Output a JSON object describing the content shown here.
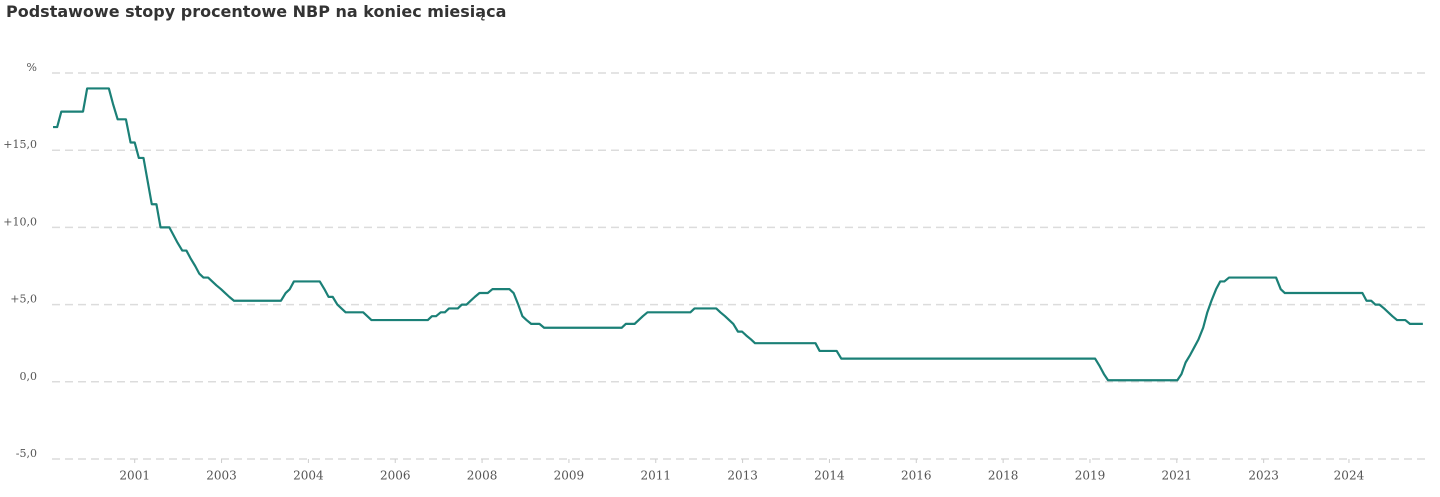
{
  "chart_data": {
    "type": "line",
    "title": "Podstawowe stopy procentowe NBP na koniec miesiąca",
    "color": "#1b8077",
    "grid": true,
    "xlim": [
      1999.9,
      2026.5
    ],
    "xticks": [
      {
        "value": 2001.5,
        "label": "2001"
      },
      {
        "value": 2003.18,
        "label": "2003"
      },
      {
        "value": 2004.86,
        "label": "2004"
      },
      {
        "value": 2006.54,
        "label": "2006"
      },
      {
        "value": 2008.22,
        "label": "2008"
      },
      {
        "value": 2009.9,
        "label": "2009"
      },
      {
        "value": 2011.58,
        "label": "2011"
      },
      {
        "value": 2013.26,
        "label": "2013"
      },
      {
        "value": 2014.94,
        "label": "2014"
      },
      {
        "value": 2016.62,
        "label": "2016"
      },
      {
        "value": 2018.3,
        "label": "2018"
      },
      {
        "value": 2019.98,
        "label": "2019"
      },
      {
        "value": 2021.66,
        "label": "2021"
      },
      {
        "value": 2023.34,
        "label": "2023"
      },
      {
        "value": 2024.99,
        "label": "2024"
      }
    ],
    "ylim": [
      -5,
      20
    ],
    "yticks": [
      {
        "value": -5,
        "label": "-5,0"
      },
      {
        "value": 0,
        "label": "0,0"
      },
      {
        "value": 5,
        "label": "+5,0"
      },
      {
        "value": 10,
        "label": "+10,0"
      },
      {
        "value": 15,
        "label": "+15,0"
      },
      {
        "value": 20,
        "label": "%"
      }
    ],
    "x": [
      1999.92,
      2000.0,
      2000.08,
      2000.5,
      2000.58,
      2001.0,
      2001.08,
      2001.17,
      2001.33,
      2001.42,
      2001.5,
      2001.58,
      2001.67,
      2001.75,
      2001.83,
      2001.92,
      2002.0,
      2002.17,
      2002.25,
      2002.33,
      2002.42,
      2002.5,
      2002.58,
      2002.67,
      2002.75,
      2002.83,
      2002.92,
      2003.0,
      2003.08,
      2003.17,
      2003.25,
      2003.33,
      2003.42,
      2004.33,
      2004.42,
      2004.5,
      2004.58,
      2005.08,
      2005.17,
      2005.25,
      2005.33,
      2005.42,
      2005.5,
      2005.58,
      2005.92,
      2006.0,
      2006.08,
      2007.17,
      2007.25,
      2007.33,
      2007.42,
      2007.5,
      2007.58,
      2007.75,
      2007.83,
      2007.92,
      2008.0,
      2008.08,
      2008.17,
      2008.33,
      2008.42,
      2008.75,
      2008.83,
      2008.92,
      2009.0,
      2009.08,
      2009.17,
      2009.33,
      2009.42,
      2010.92,
      2011.0,
      2011.17,
      2011.25,
      2011.33,
      2011.42,
      2012.25,
      2012.33,
      2012.75,
      2012.83,
      2012.92,
      2013.0,
      2013.08,
      2013.17,
      2013.25,
      2013.33,
      2013.42,
      2013.5,
      2014.67,
      2014.75,
      2015.08,
      2015.17,
      2020.08,
      2020.17,
      2020.25,
      2020.33,
      2021.67,
      2021.75,
      2021.83,
      2021.92,
      2022.0,
      2022.08,
      2022.17,
      2022.25,
      2022.33,
      2022.42,
      2022.5,
      2022.58,
      2022.67,
      2023.58,
      2023.67,
      2023.75,
      2025.25,
      2025.33,
      2025.42,
      2025.5,
      2025.58,
      2025.67,
      2025.75,
      2025.83,
      2025.92,
      2026.08,
      2026.17,
      2026.42
    ],
    "values": [
      16.5,
      16.5,
      17.5,
      17.5,
      19,
      19,
      18,
      17,
      17,
      15.5,
      15.5,
      14.5,
      14.5,
      13,
      11.5,
      11.5,
      10,
      10,
      9.5,
      9,
      8.5,
      8.5,
      8,
      7.5,
      7,
      6.75,
      6.75,
      6.5,
      6.25,
      6,
      5.75,
      5.5,
      5.25,
      5.25,
      5.75,
      6,
      6.5,
      6.5,
      6,
      5.5,
      5.5,
      5,
      4.75,
      4.5,
      4.5,
      4.25,
      4,
      4,
      4.25,
      4.25,
      4.5,
      4.5,
      4.75,
      4.75,
      5,
      5,
      5.25,
      5.5,
      5.75,
      5.75,
      6,
      6,
      5.75,
      5,
      4.25,
      4,
      3.75,
      3.75,
      3.5,
      3.5,
      3.75,
      3.75,
      4,
      4.25,
      4.5,
      4.5,
      4.75,
      4.75,
      4.5,
      4.25,
      4,
      3.75,
      3.25,
      3.25,
      3,
      2.75,
      2.5,
      2.5,
      2,
      2,
      1.5,
      1.5,
      1,
      0.5,
      0.1,
      0.1,
      0.5,
      1.25,
      1.75,
      2.25,
      2.75,
      3.5,
      4.5,
      5.25,
      6,
      6.5,
      6.5,
      6.75,
      6.75,
      6,
      5.75,
      5.75,
      5.25,
      5.25,
      5,
      5,
      4.75,
      4.5,
      4.25,
      4,
      4,
      3.75,
      3.75
    ]
  }
}
